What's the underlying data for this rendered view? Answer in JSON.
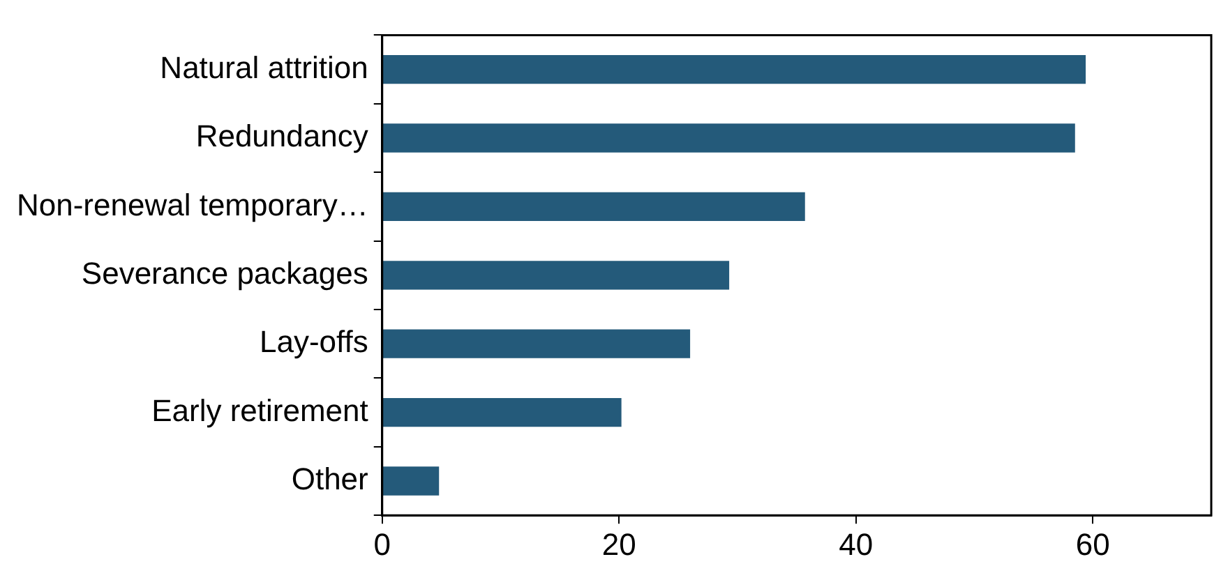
{
  "chart_data": {
    "type": "bar",
    "orientation": "horizontal",
    "categories": [
      "Natural attrition",
      "Redundancy",
      "Non-renewal temporary…",
      "Severance packages",
      "Lay-offs",
      "Early retirement",
      "Other"
    ],
    "values": [
      59.4,
      58.5,
      35.7,
      29.3,
      26,
      20.2,
      4.8
    ],
    "color": "#245a7a",
    "xlim": [
      0,
      70
    ],
    "xticks": [
      0,
      20,
      40,
      60
    ],
    "grid": false,
    "legend": false
  }
}
